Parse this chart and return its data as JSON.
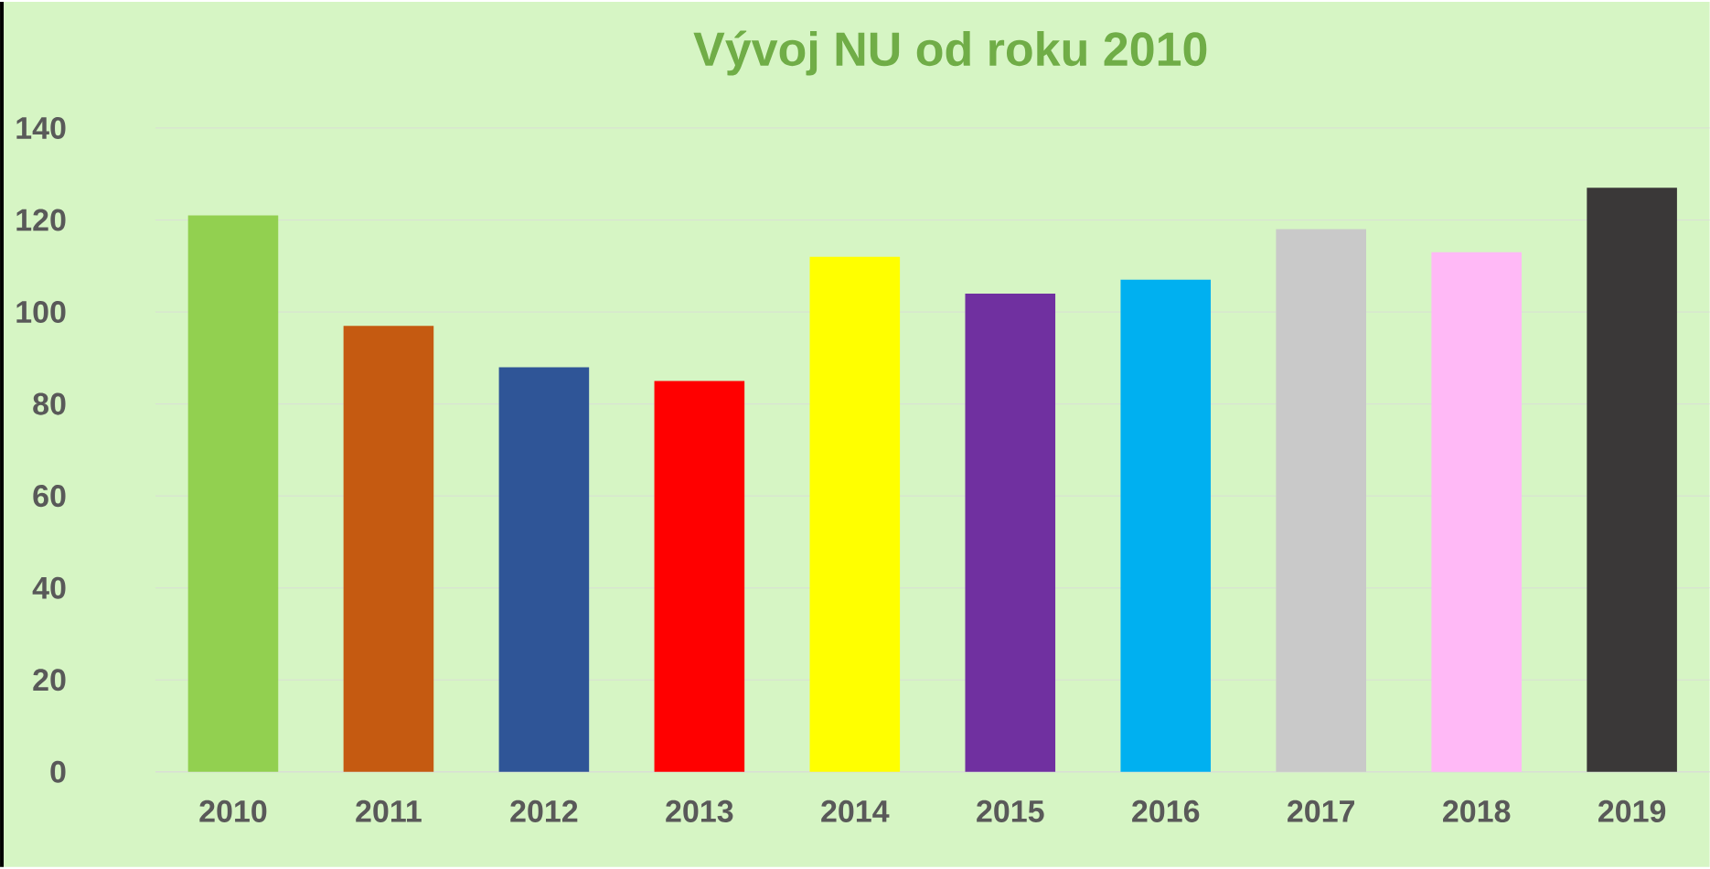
{
  "chart_data": {
    "type": "bar",
    "title": "Vývoj NU od roku 2010",
    "categories": [
      "2010",
      "2011",
      "2012",
      "2013",
      "2014",
      "2015",
      "2016",
      "2017",
      "2018",
      "2019"
    ],
    "values": [
      121,
      97,
      88,
      85,
      112,
      104,
      107,
      118,
      113,
      127
    ],
    "colors": [
      "#92d050",
      "#c55a11",
      "#2f5597",
      "#ff0000",
      "#ffff00",
      "#7030a0",
      "#00b0f0",
      "#c9c9c9",
      "#ffb9f6",
      "#3a3838"
    ],
    "ylim": [
      0,
      140
    ],
    "yticks": [
      0,
      20,
      40,
      60,
      80,
      100,
      120,
      140
    ],
    "grid": "y"
  }
}
